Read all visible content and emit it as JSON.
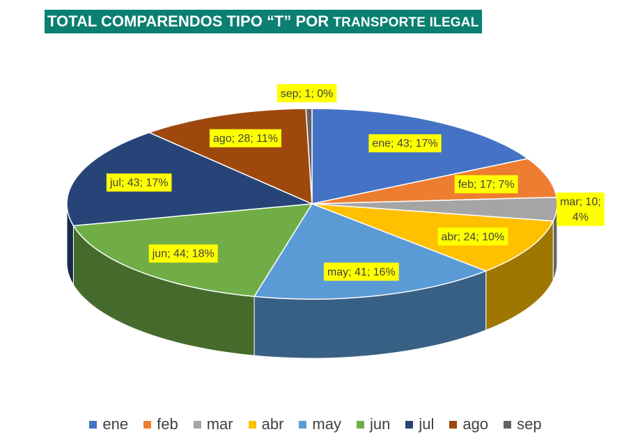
{
  "title": {
    "part1": "TOTAL COMPARENDOS TIPO “T” POR ",
    "part2": "TRANSPORTE ILEGAL"
  },
  "chart_data": {
    "type": "pie",
    "style": "3d",
    "title": "TOTAL COMPARENDOS TIPO “T” POR TRANSPORTE ILEGAL",
    "categories": [
      "ene",
      "feb",
      "mar",
      "abr",
      "may",
      "jun",
      "jul",
      "ago",
      "sep"
    ],
    "values": [
      43,
      17,
      10,
      24,
      41,
      44,
      43,
      28,
      1
    ],
    "percent_labels": [
      "17%",
      "7%",
      "4%",
      "10%",
      "16%",
      "18%",
      "17%",
      "11%",
      "0%"
    ],
    "data_labels": [
      "ene; 43; 17%",
      "feb; 17; 7%",
      "mar; 10; 4%",
      "abr; 24; 10%",
      "may; 41; 16%",
      "jun; 44; 18%",
      "jul; 43; 17%",
      "ago; 28; 11%",
      "sep; 1; 0%"
    ],
    "colors": [
      "#4472c4",
      "#ed7d31",
      "#a5a5a5",
      "#ffc000",
      "#5b9bd5",
      "#70ad47",
      "#264478",
      "#9e480e",
      "#636363"
    ],
    "label_background": "#ffff00",
    "legend_position": "bottom"
  }
}
